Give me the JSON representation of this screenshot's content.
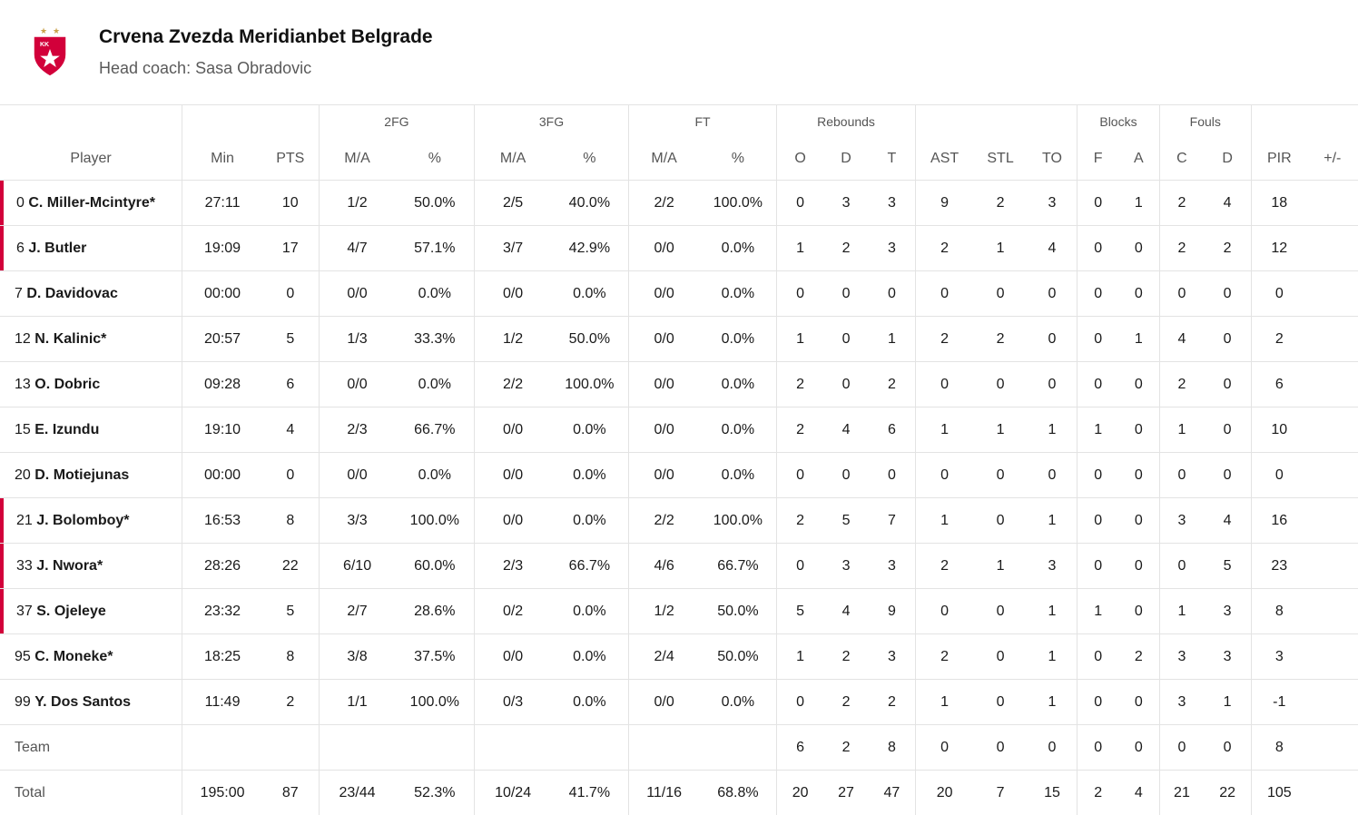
{
  "team": {
    "name": "Crvena Zvezda Meridianbet Belgrade",
    "coach": "Head coach: Sasa Obradovic",
    "logo_text": "KK",
    "colors": {
      "red": "#d2003a",
      "gold": "#c9a24a"
    }
  },
  "groups": {
    "fg2": "2FG",
    "fg3": "3FG",
    "ft": "FT",
    "reb": "Rebounds",
    "blk": "Blocks",
    "fouls": "Fouls"
  },
  "columns": {
    "player": "Player",
    "min": "Min",
    "pts": "PTS",
    "fg2_ma": "M/A",
    "fg2_pct": "%",
    "fg3_ma": "M/A",
    "fg3_pct": "%",
    "ft_ma": "M/A",
    "ft_pct": "%",
    "reb_o": "O",
    "reb_d": "D",
    "reb_t": "T",
    "ast": "AST",
    "stl": "STL",
    "to": "TO",
    "blk_f": "F",
    "blk_a": "A",
    "foul_c": "C",
    "foul_d": "D",
    "pir": "PIR",
    "pm": "+/-"
  },
  "players": [
    {
      "num": "0",
      "name": "C. Miller-Mcintyre*",
      "starter": true,
      "min": "27:11",
      "pts": "10",
      "fg2": "1/2",
      "fg2p": "50.0%",
      "fg3": "2/5",
      "fg3p": "40.0%",
      "ft": "2/2",
      "ftp": "100.0%",
      "o": "0",
      "d": "3",
      "t": "3",
      "ast": "9",
      "stl": "2",
      "to": "3",
      "bf": "0",
      "ba": "1",
      "fc": "2",
      "fd": "4",
      "pir": "18",
      "pm": ""
    },
    {
      "num": "6",
      "name": "J. Butler",
      "starter": true,
      "min": "19:09",
      "pts": "17",
      "fg2": "4/7",
      "fg2p": "57.1%",
      "fg3": "3/7",
      "fg3p": "42.9%",
      "ft": "0/0",
      "ftp": "0.0%",
      "o": "1",
      "d": "2",
      "t": "3",
      "ast": "2",
      "stl": "1",
      "to": "4",
      "bf": "0",
      "ba": "0",
      "fc": "2",
      "fd": "2",
      "pir": "12",
      "pm": ""
    },
    {
      "num": "7",
      "name": "D. Davidovac",
      "starter": false,
      "min": "00:00",
      "pts": "0",
      "fg2": "0/0",
      "fg2p": "0.0%",
      "fg3": "0/0",
      "fg3p": "0.0%",
      "ft": "0/0",
      "ftp": "0.0%",
      "o": "0",
      "d": "0",
      "t": "0",
      "ast": "0",
      "stl": "0",
      "to": "0",
      "bf": "0",
      "ba": "0",
      "fc": "0",
      "fd": "0",
      "pir": "0",
      "pm": ""
    },
    {
      "num": "12",
      "name": "N. Kalinic*",
      "starter": false,
      "min": "20:57",
      "pts": "5",
      "fg2": "1/3",
      "fg2p": "33.3%",
      "fg3": "1/2",
      "fg3p": "50.0%",
      "ft": "0/0",
      "ftp": "0.0%",
      "o": "1",
      "d": "0",
      "t": "1",
      "ast": "2",
      "stl": "2",
      "to": "0",
      "bf": "0",
      "ba": "1",
      "fc": "4",
      "fd": "0",
      "pir": "2",
      "pm": ""
    },
    {
      "num": "13",
      "name": "O. Dobric",
      "starter": false,
      "min": "09:28",
      "pts": "6",
      "fg2": "0/0",
      "fg2p": "0.0%",
      "fg3": "2/2",
      "fg3p": "100.0%",
      "ft": "0/0",
      "ftp": "0.0%",
      "o": "2",
      "d": "0",
      "t": "2",
      "ast": "0",
      "stl": "0",
      "to": "0",
      "bf": "0",
      "ba": "0",
      "fc": "2",
      "fd": "0",
      "pir": "6",
      "pm": ""
    },
    {
      "num": "15",
      "name": "E. Izundu",
      "starter": false,
      "min": "19:10",
      "pts": "4",
      "fg2": "2/3",
      "fg2p": "66.7%",
      "fg3": "0/0",
      "fg3p": "0.0%",
      "ft": "0/0",
      "ftp": "0.0%",
      "o": "2",
      "d": "4",
      "t": "6",
      "ast": "1",
      "stl": "1",
      "to": "1",
      "bf": "1",
      "ba": "0",
      "fc": "1",
      "fd": "0",
      "pir": "10",
      "pm": ""
    },
    {
      "num": "20",
      "name": "D. Motiejunas",
      "starter": false,
      "min": "00:00",
      "pts": "0",
      "fg2": "0/0",
      "fg2p": "0.0%",
      "fg3": "0/0",
      "fg3p": "0.0%",
      "ft": "0/0",
      "ftp": "0.0%",
      "o": "0",
      "d": "0",
      "t": "0",
      "ast": "0",
      "stl": "0",
      "to": "0",
      "bf": "0",
      "ba": "0",
      "fc": "0",
      "fd": "0",
      "pir": "0",
      "pm": ""
    },
    {
      "num": "21",
      "name": "J. Bolomboy*",
      "starter": true,
      "min": "16:53",
      "pts": "8",
      "fg2": "3/3",
      "fg2p": "100.0%",
      "fg3": "0/0",
      "fg3p": "0.0%",
      "ft": "2/2",
      "ftp": "100.0%",
      "o": "2",
      "d": "5",
      "t": "7",
      "ast": "1",
      "stl": "0",
      "to": "1",
      "bf": "0",
      "ba": "0",
      "fc": "3",
      "fd": "4",
      "pir": "16",
      "pm": ""
    },
    {
      "num": "33",
      "name": "J. Nwora*",
      "starter": true,
      "min": "28:26",
      "pts": "22",
      "fg2": "6/10",
      "fg2p": "60.0%",
      "fg3": "2/3",
      "fg3p": "66.7%",
      "ft": "4/6",
      "ftp": "66.7%",
      "o": "0",
      "d": "3",
      "t": "3",
      "ast": "2",
      "stl": "1",
      "to": "3",
      "bf": "0",
      "ba": "0",
      "fc": "0",
      "fd": "5",
      "pir": "23",
      "pm": ""
    },
    {
      "num": "37",
      "name": "S. Ojeleye",
      "starter": true,
      "min": "23:32",
      "pts": "5",
      "fg2": "2/7",
      "fg2p": "28.6%",
      "fg3": "0/2",
      "fg3p": "0.0%",
      "ft": "1/2",
      "ftp": "50.0%",
      "o": "5",
      "d": "4",
      "t": "9",
      "ast": "0",
      "stl": "0",
      "to": "1",
      "bf": "1",
      "ba": "0",
      "fc": "1",
      "fd": "3",
      "pir": "8",
      "pm": ""
    },
    {
      "num": "95",
      "name": "C. Moneke*",
      "starter": false,
      "min": "18:25",
      "pts": "8",
      "fg2": "3/8",
      "fg2p": "37.5%",
      "fg3": "0/0",
      "fg3p": "0.0%",
      "ft": "2/4",
      "ftp": "50.0%",
      "o": "1",
      "d": "2",
      "t": "3",
      "ast": "2",
      "stl": "0",
      "to": "1",
      "bf": "0",
      "ba": "2",
      "fc": "3",
      "fd": "3",
      "pir": "3",
      "pm": ""
    },
    {
      "num": "99",
      "name": "Y. Dos Santos",
      "starter": false,
      "min": "11:49",
      "pts": "2",
      "fg2": "1/1",
      "fg2p": "100.0%",
      "fg3": "0/3",
      "fg3p": "0.0%",
      "ft": "0/0",
      "ftp": "0.0%",
      "o": "0",
      "d": "2",
      "t": "2",
      "ast": "1",
      "stl": "0",
      "to": "1",
      "bf": "0",
      "ba": "0",
      "fc": "3",
      "fd": "1",
      "pir": "-1",
      "pm": ""
    }
  ],
  "team_row": {
    "label": "Team",
    "min": "",
    "pts": "",
    "fg2": "",
    "fg2p": "",
    "fg3": "",
    "fg3p": "",
    "ft": "",
    "ftp": "",
    "o": "6",
    "d": "2",
    "t": "8",
    "ast": "0",
    "stl": "0",
    "to": "0",
    "bf": "0",
    "ba": "0",
    "fc": "0",
    "fd": "0",
    "pir": "8",
    "pm": ""
  },
  "total_row": {
    "label": "Total",
    "min": "195:00",
    "pts": "87",
    "fg2": "23/44",
    "fg2p": "52.3%",
    "fg3": "10/24",
    "fg3p": "41.7%",
    "ft": "11/16",
    "ftp": "68.8%",
    "o": "20",
    "d": "27",
    "t": "47",
    "ast": "20",
    "stl": "7",
    "to": "15",
    "bf": "2",
    "ba": "4",
    "fc": "21",
    "fd": "22",
    "pir": "105",
    "pm": ""
  }
}
